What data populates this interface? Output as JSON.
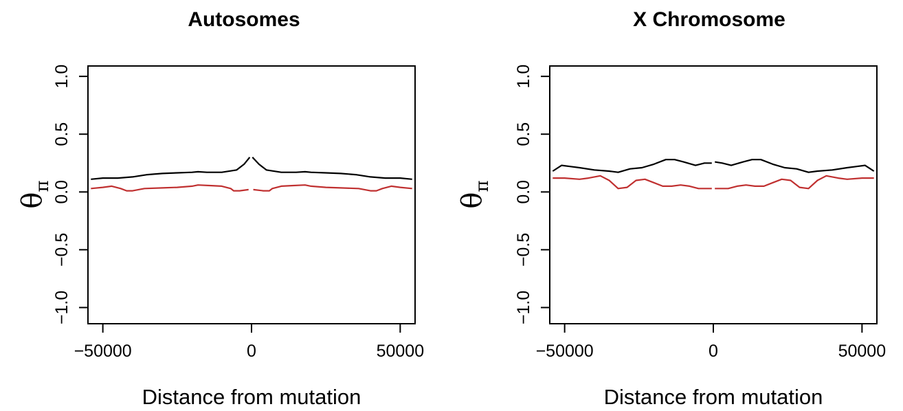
{
  "chart_data": [
    {
      "type": "line",
      "title": "Autosomes",
      "xlabel": "Distance from mutation",
      "ylabel_symbol": "θ",
      "ylabel_subscript": "π",
      "xlim": [
        -55000,
        55000
      ],
      "ylim": [
        -1.0,
        1.0
      ],
      "xticks": [
        -50000,
        0,
        50000
      ],
      "xtick_labels": [
        "−50000",
        "0",
        "50000"
      ],
      "yticks": [
        -1.0,
        -0.5,
        0.0,
        0.5,
        1.0
      ],
      "ytick_labels": [
        "−1.0",
        "−0.5",
        "0.0",
        "0.5",
        "1.0"
      ],
      "grid": false,
      "legend": false,
      "series": [
        {
          "color": "#000000",
          "segments": [
            {
              "x": [
                -54000,
                -50000,
                -45000,
                -40000,
                -35000,
                -30000,
                -25000,
                -20000,
                -18000,
                -15000,
                -10000,
                -5000,
                -2500,
                -600
              ],
              "y": [
                0.11,
                0.12,
                0.12,
                0.13,
                0.15,
                0.16,
                0.165,
                0.17,
                0.175,
                0.17,
                0.17,
                0.19,
                0.24,
                0.3
              ]
            },
            {
              "x": [
                300,
                2500,
                5000,
                10000,
                15000,
                18000,
                20000,
                25000,
                30000,
                35000,
                40000,
                45000,
                50000,
                54000
              ],
              "y": [
                0.3,
                0.24,
                0.19,
                0.17,
                0.17,
                0.175,
                0.17,
                0.165,
                0.16,
                0.15,
                0.13,
                0.12,
                0.12,
                0.11
              ]
            }
          ]
        },
        {
          "color": "#c03030",
          "segments": [
            {
              "x": [
                -54000,
                -50000,
                -47000,
                -44000,
                -42000,
                -40000,
                -36000,
                -30000,
                -25000,
                -20000,
                -18000,
                -14000,
                -10000,
                -7000,
                -6000,
                -4000,
                -1000
              ],
              "y": [
                0.03,
                0.04,
                0.05,
                0.03,
                0.01,
                0.01,
                0.03,
                0.035,
                0.04,
                0.05,
                0.06,
                0.055,
                0.05,
                0.03,
                0.01,
                0.01,
                0.02
              ]
            },
            {
              "x": [
                600,
                4000,
                6000,
                7000,
                10000,
                14000,
                18000,
                20000,
                25000,
                30000,
                36000,
                40000,
                42000,
                44000,
                47000,
                50000,
                54000
              ],
              "y": [
                0.02,
                0.01,
                0.01,
                0.03,
                0.05,
                0.055,
                0.06,
                0.05,
                0.04,
                0.035,
                0.03,
                0.01,
                0.01,
                0.03,
                0.05,
                0.04,
                0.03
              ]
            }
          ]
        }
      ]
    },
    {
      "type": "line",
      "title": "X Chromosome",
      "xlabel": "Distance from mutation",
      "ylabel_symbol": "θ",
      "ylabel_subscript": "π",
      "xlim": [
        -55000,
        55000
      ],
      "ylim": [
        -1.0,
        1.0
      ],
      "xticks": [
        -50000,
        0,
        50000
      ],
      "xtick_labels": [
        "−50000",
        "0",
        "50000"
      ],
      "yticks": [
        -1.0,
        -0.5,
        0.0,
        0.5,
        1.0
      ],
      "ytick_labels": [
        "−1.0",
        "−0.5",
        "0.0",
        "0.5",
        "1.0"
      ],
      "grid": false,
      "legend": false,
      "series": [
        {
          "color": "#000000",
          "segments": [
            {
              "x": [
                -54000,
                -51000,
                -48000,
                -45000,
                -40000,
                -35000,
                -32000,
                -28000,
                -24000,
                -20000,
                -16000,
                -13000,
                -10000,
                -6000,
                -3000,
                -500
              ],
              "y": [
                0.18,
                0.23,
                0.22,
                0.21,
                0.19,
                0.18,
                0.17,
                0.2,
                0.21,
                0.24,
                0.28,
                0.28,
                0.26,
                0.23,
                0.25,
                0.25
              ]
            },
            {
              "x": [
                500,
                3000,
                6000,
                10000,
                13000,
                16000,
                20000,
                24000,
                28000,
                32000,
                35000,
                40000,
                45000,
                48000,
                51000,
                54000
              ],
              "y": [
                0.26,
                0.25,
                0.23,
                0.26,
                0.28,
                0.28,
                0.24,
                0.21,
                0.2,
                0.17,
                0.18,
                0.19,
                0.21,
                0.22,
                0.23,
                0.18
              ]
            }
          ]
        },
        {
          "color": "#c03030",
          "segments": [
            {
              "x": [
                -54000,
                -50000,
                -45000,
                -42000,
                -38000,
                -35000,
                -32000,
                -29000,
                -26000,
                -23000,
                -20000,
                -17000,
                -14000,
                -11000,
                -8000,
                -5000,
                -2000,
                -500
              ],
              "y": [
                0.12,
                0.12,
                0.11,
                0.12,
                0.14,
                0.1,
                0.03,
                0.04,
                0.1,
                0.11,
                0.08,
                0.05,
                0.05,
                0.06,
                0.05,
                0.03,
                0.03,
                0.03
              ]
            },
            {
              "x": [
                500,
                2000,
                5000,
                8000,
                11000,
                14000,
                17000,
                20000,
                23000,
                26000,
                29000,
                32000,
                35000,
                38000,
                42000,
                45000,
                50000,
                54000
              ],
              "y": [
                0.03,
                0.03,
                0.03,
                0.05,
                0.06,
                0.05,
                0.05,
                0.08,
                0.11,
                0.1,
                0.04,
                0.03,
                0.1,
                0.14,
                0.12,
                0.11,
                0.12,
                0.12
              ]
            }
          ]
        }
      ]
    }
  ]
}
